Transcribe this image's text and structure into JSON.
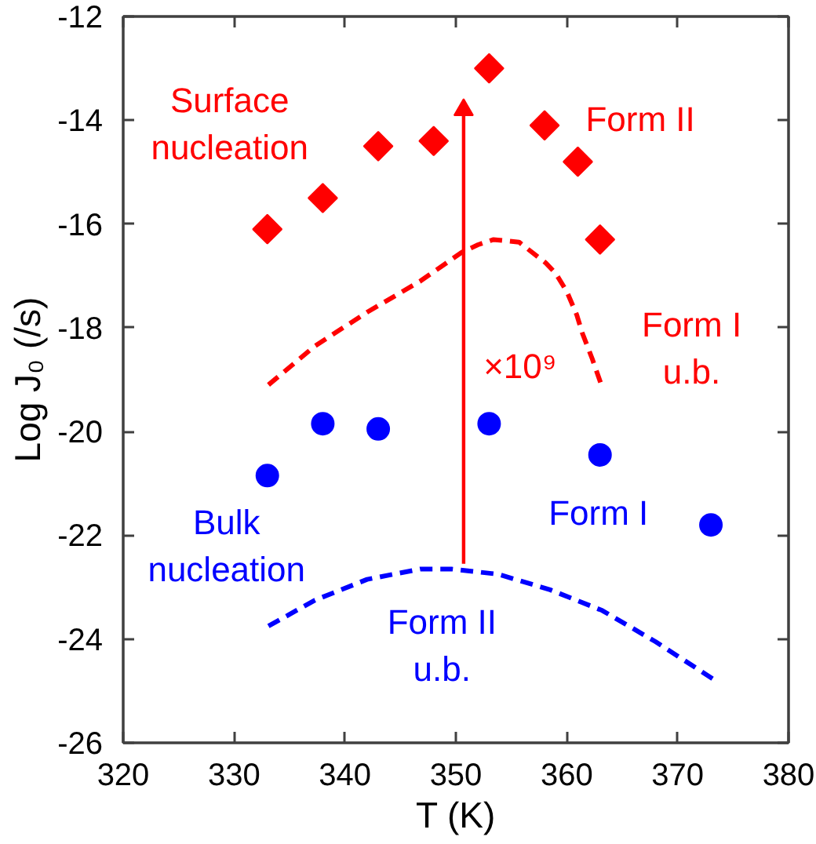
{
  "chart_data": {
    "type": "scatter",
    "xlabel": "T (K)",
    "ylabel": "Log J₀ (/s)",
    "xlim": [
      320,
      380
    ],
    "ylim": [
      -26,
      -12
    ],
    "xticks": [
      320,
      330,
      340,
      350,
      360,
      370,
      380
    ],
    "yticks": [
      -26,
      -24,
      -22,
      -20,
      -18,
      -16,
      -14,
      -12
    ],
    "grid": false,
    "series": [
      {
        "name": "Form II",
        "marker": "diamond",
        "color": "#ff0000",
        "x": [
          333,
          338,
          343,
          348,
          353,
          358,
          361,
          363
        ],
        "values": [
          -16.1,
          -15.5,
          -14.5,
          -14.4,
          -13.0,
          -14.1,
          -14.8,
          -16.3
        ]
      },
      {
        "name": "Form I",
        "marker": "circle",
        "color": "#0000ff",
        "x": [
          333,
          338,
          343,
          353,
          363,
          373
        ],
        "values": [
          -20.85,
          -19.85,
          -19.95,
          -19.85,
          -20.45,
          -21.8
        ]
      },
      {
        "name": "Form I\nu.b.",
        "type": "line",
        "line_style": "dashed",
        "color": "#ff0000",
        "x": [
          333.1,
          337.3,
          342,
          346.8,
          350.5,
          352,
          353.4,
          355.7,
          358.1,
          359,
          360,
          360.9,
          361.4,
          362.3,
          363.2
        ],
        "values": [
          -19.1,
          -18.35,
          -17.7,
          -17.1,
          -16.55,
          -16.4,
          -16.3,
          -16.35,
          -16.75,
          -16.95,
          -17.3,
          -17.75,
          -18.1,
          -18.6,
          -19.15
        ]
      },
      {
        "name": "Form II\nu.b.",
        "type": "line",
        "line_style": "dashed",
        "color": "#0000ff",
        "x": [
          333.1,
          337.3,
          342,
          346.8,
          349.6,
          353.8,
          358.5,
          363.2,
          368,
          373.4
        ],
        "values": [
          -23.75,
          -23.25,
          -22.85,
          -22.65,
          -22.65,
          -22.75,
          -23.05,
          -23.45,
          -24.05,
          -24.8
        ]
      },
      {
        "name": "×10⁹",
        "type": "line",
        "line_style": "solid",
        "color": "#ff0000",
        "x": [
          350.7,
          350.7
        ],
        "values": [
          -22.55,
          -13.8
        ]
      }
    ],
    "annotations": [
      "Surface\nnucleation",
      "Bulk\nnucleation"
    ]
  }
}
